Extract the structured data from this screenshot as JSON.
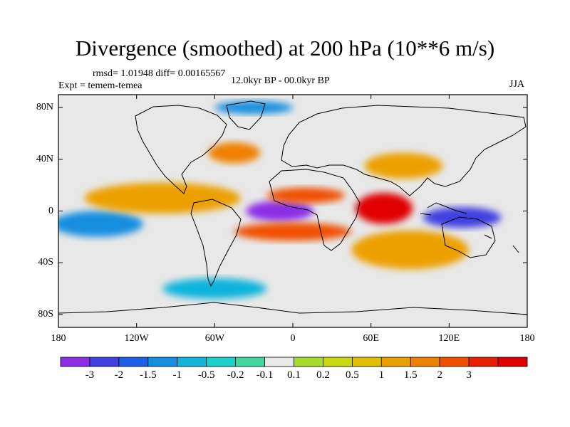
{
  "chart_data": {
    "type": "heatmap",
    "title": "Divergence (smoothed) at 200 hPa (10**6 m/s)",
    "stats_text": "rmsd= 1.01948 diff= 0.00165567",
    "experiment_text": "Expt = temem-temea",
    "period_text": "12.0kyr BP - 00.0kyr BP",
    "season_text": "JJA",
    "xlim": [
      -180,
      180
    ],
    "ylim": [
      -90,
      90
    ],
    "x_ticks": [
      {
        "value": -180,
        "label": "180"
      },
      {
        "value": -120,
        "label": "120W"
      },
      {
        "value": -60,
        "label": "60W"
      },
      {
        "value": 0,
        "label": "0"
      },
      {
        "value": 60,
        "label": "60E"
      },
      {
        "value": 120,
        "label": "120E"
      },
      {
        "value": 180,
        "label": "180"
      }
    ],
    "y_ticks": [
      {
        "value": 80,
        "label": "80N"
      },
      {
        "value": 40,
        "label": "40N"
      },
      {
        "value": 0,
        "label": "0"
      },
      {
        "value": -40,
        "label": "40S"
      },
      {
        "value": -80,
        "label": "80S"
      }
    ],
    "colorbar": {
      "colors": [
        "#8c2ee6",
        "#4040e0",
        "#1e5ee8",
        "#148ee0",
        "#10b4dc",
        "#1cd0cc",
        "#40d8a0",
        "#e8e8e8",
        "#a8dc2c",
        "#c8d810",
        "#e0c000",
        "#eca000",
        "#f08000",
        "#f05000",
        "#e82000",
        "#e00000"
      ],
      "labels": [
        "-3",
        "-2",
        "-1.5",
        "-1",
        "-0.5",
        "-0.2",
        "-0.1",
        "0.1",
        "0.2",
        "0.5",
        "1",
        "1.5",
        "2",
        "3"
      ]
    },
    "features": [
      {
        "name": "central-atlantic-convergence",
        "lon": -10,
        "lat": 0,
        "rx": 26,
        "ry": 8,
        "level": -3
      },
      {
        "name": "indian-ocean-divergence",
        "lon": 70,
        "lat": 2,
        "rx": 22,
        "ry": 12,
        "level": 3
      },
      {
        "name": "west-african-divergence",
        "lon": 10,
        "lat": 12,
        "rx": 30,
        "ry": 6,
        "level": 2
      },
      {
        "name": "south-atlantic-divergence",
        "lon": 0,
        "lat": -16,
        "rx": 45,
        "ry": 7,
        "level": 2
      },
      {
        "name": "warm-pool-convergence",
        "lon": 130,
        "lat": -5,
        "rx": 30,
        "ry": 8,
        "level": -2
      },
      {
        "name": "east-pacific-convergence",
        "lon": -150,
        "lat": -10,
        "rx": 35,
        "ry": 10,
        "level": -1
      },
      {
        "name": "east-pacific-divergence",
        "lon": -100,
        "lat": 10,
        "rx": 60,
        "ry": 12,
        "level": 1
      },
      {
        "name": "asia-divergence",
        "lon": 85,
        "lat": 35,
        "rx": 30,
        "ry": 10,
        "level": 1
      },
      {
        "name": "south-indian-divergence",
        "lon": 90,
        "lat": -30,
        "rx": 45,
        "ry": 15,
        "level": 1
      },
      {
        "name": "north-atlantic-divergence",
        "lon": -45,
        "lat": 45,
        "rx": 20,
        "ry": 8,
        "level": 1.5
      },
      {
        "name": "arctic-convergence",
        "lon": -30,
        "lat": 80,
        "rx": 30,
        "ry": 5,
        "level": -1
      },
      {
        "name": "southern-ocean-convergence",
        "lon": -60,
        "lat": -60,
        "rx": 40,
        "ry": 8,
        "level": -0.5
      }
    ]
  }
}
